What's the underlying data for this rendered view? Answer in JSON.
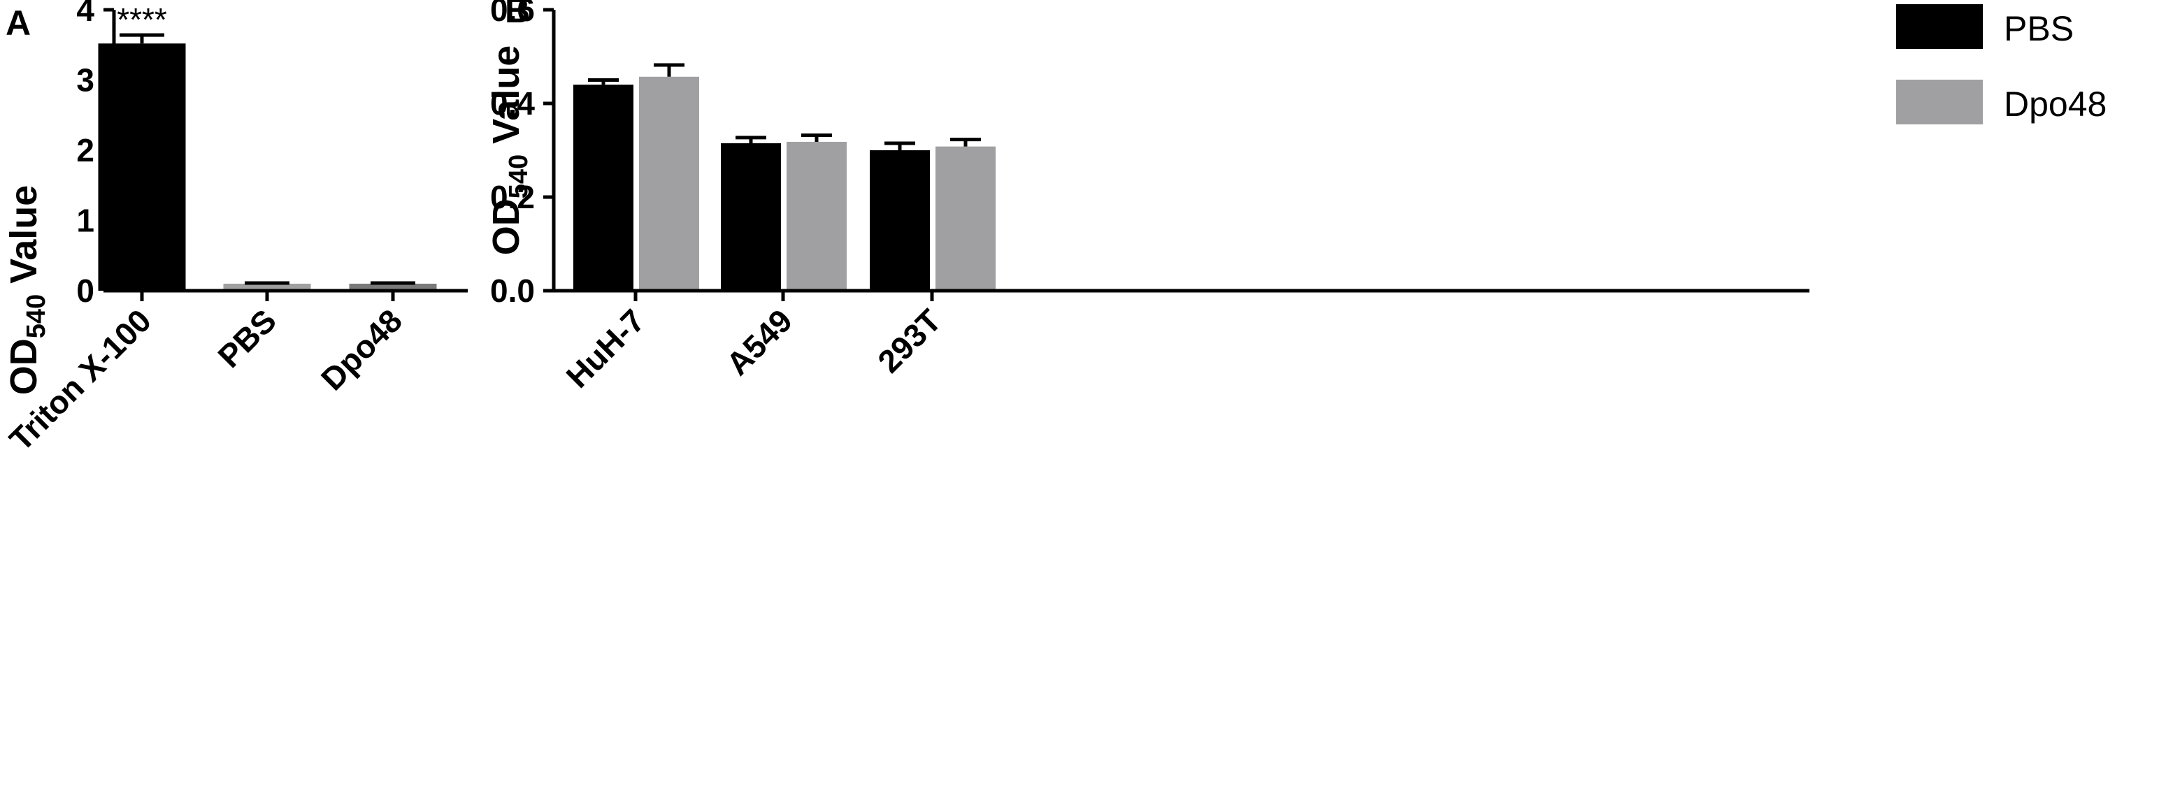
{
  "chart_data": [
    {
      "panel": "A",
      "type": "bar",
      "ylabel": "OD540 Value",
      "ylabel_main": "OD",
      "ylabel_sub": "540",
      "ylabel_tail": " Value",
      "ylim": [
        0,
        4
      ],
      "yticks": [
        {
          "value": 0,
          "label": "0"
        },
        {
          "value": 1,
          "label": "1"
        },
        {
          "value": 2,
          "label": "2"
        },
        {
          "value": 3,
          "label": "3"
        },
        {
          "value": 4,
          "label": "4"
        }
      ],
      "categories": [
        "Triton X-100",
        "PBS",
        "Dpo48"
      ],
      "values": [
        3.52,
        0.1,
        0.1
      ],
      "errors": [
        0.12,
        0.01,
        0.01
      ],
      "colors": [
        "#000000",
        "#a0a0a0",
        "#7a7a7a"
      ],
      "annotations": [
        {
          "category": "Triton X-100",
          "text": "****"
        }
      ],
      "grid": false
    },
    {
      "panel": "B",
      "type": "bar",
      "ylabel": "OD540 Value",
      "ylabel_main": "OD",
      "ylabel_sub": "540",
      "ylabel_tail": " Value",
      "ylim": [
        0,
        0.6
      ],
      "yticks": [
        {
          "value": 0,
          "label": "0.0"
        },
        {
          "value": 0.2,
          "label": "0.2"
        },
        {
          "value": 0.4,
          "label": "0.4"
        },
        {
          "value": 0.6,
          "label": "0.6"
        }
      ],
      "categories": [
        "HuH-7",
        "A549",
        "293T"
      ],
      "series": [
        {
          "name": "PBS",
          "color": "#000000",
          "values": [
            0.44,
            0.315,
            0.3
          ],
          "errors": [
            0.01,
            0.012,
            0.015
          ]
        },
        {
          "name": "Dpo48",
          "color": "#a0a0a3",
          "values": [
            0.457,
            0.318,
            0.308
          ],
          "errors": [
            0.025,
            0.014,
            0.015
          ]
        }
      ],
      "legend": "top-right",
      "grid": false
    }
  ]
}
